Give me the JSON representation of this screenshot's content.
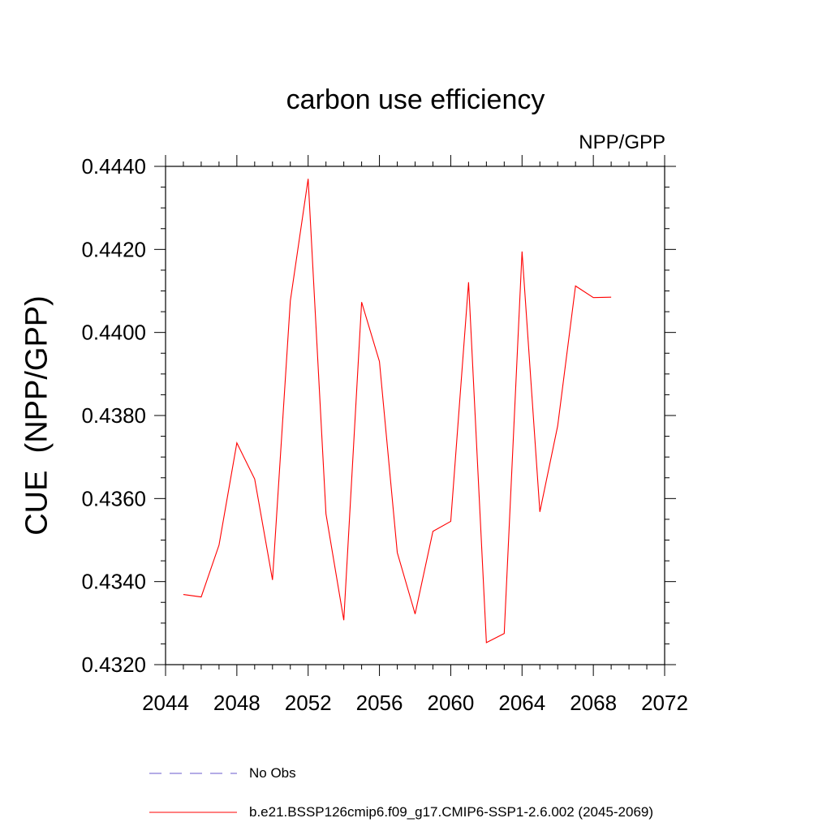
{
  "chart_data": {
    "type": "line",
    "title": "carbon use efficiency",
    "subtitle": "NPP/GPP",
    "xlabel": "",
    "ylabel": "CUE  (NPP/GPP)",
    "xlim": [
      2044,
      2072
    ],
    "ylim": [
      0.432,
      0.444
    ],
    "xticks": [
      2044,
      2048,
      2052,
      2056,
      2060,
      2064,
      2068,
      2072
    ],
    "yticks": [
      0.432,
      0.434,
      0.436,
      0.438,
      0.44,
      0.442,
      0.444
    ],
    "xtick_labels": [
      "2044",
      "2048",
      "2052",
      "2056",
      "2060",
      "2064",
      "2068",
      "2072"
    ],
    "ytick_labels": [
      "0.4320",
      "0.4340",
      "0.4360",
      "0.4380",
      "0.4400",
      "0.4420",
      "0.4440"
    ],
    "series": [
      {
        "name": "b.e21.BSSP126cmip6.f09_g17.CMIP6-SSP1-2.6.002 (2045-2069)",
        "color": "#ff0000",
        "style": "solid",
        "x": [
          2045,
          2046,
          2047,
          2048,
          2049,
          2050,
          2051,
          2052,
          2053,
          2054,
          2055,
          2056,
          2057,
          2058,
          2059,
          2060,
          2061,
          2062,
          2063,
          2064,
          2065,
          2066,
          2067,
          2068,
          2069
        ],
        "values": [
          0.43369,
          0.43363,
          0.43488,
          0.43734,
          0.43647,
          0.43404,
          0.44076,
          0.4437,
          0.43563,
          0.43307,
          0.44073,
          0.4393,
          0.4347,
          0.43322,
          0.43521,
          0.43545,
          0.44121,
          0.43253,
          0.43275,
          0.44195,
          0.43568,
          0.43775,
          0.44112,
          0.44084,
          0.44085
        ]
      }
    ],
    "legend": [
      {
        "label": "No Obs",
        "color": "#6a5acd",
        "style": "dashed"
      },
      {
        "label": "b.e21.BSSP126cmip6.f09_g17.CMIP6-SSP1-2.6.002 (2045-2069)",
        "color": "#ff0000",
        "style": "solid"
      }
    ]
  }
}
